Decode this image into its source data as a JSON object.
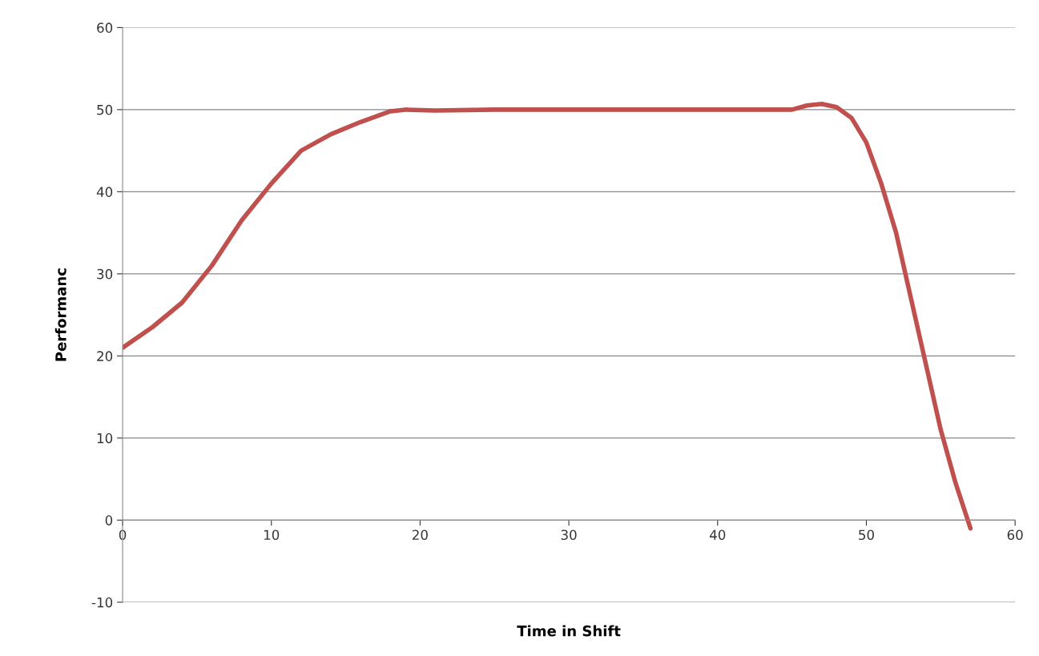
{
  "chart_data": {
    "type": "line",
    "xlabel": "Time in Shift",
    "ylabel": "Performanc",
    "x": [
      0,
      2,
      4,
      6,
      8,
      10,
      12,
      14,
      16,
      18,
      19,
      21,
      25,
      30,
      35,
      40,
      45,
      46,
      47,
      48,
      49,
      50,
      51,
      52,
      53,
      54,
      55,
      56,
      57
    ],
    "series": [
      {
        "color": "#c0504d",
        "values": [
          21,
          23.5,
          26.5,
          31,
          36.5,
          41,
          45,
          47,
          48.5,
          49.8,
          50,
          49.9,
          50,
          50,
          50,
          50,
          50,
          50.5,
          50.7,
          50.3,
          49,
          46,
          41,
          35,
          27,
          19,
          11,
          4.5,
          -1
        ]
      }
    ],
    "xlim": [
      0,
      60
    ],
    "xticks": [
      0,
      10,
      20,
      30,
      40,
      50,
      60
    ],
    "ylim": [
      -10,
      60
    ],
    "yticks": [
      -10,
      0,
      10,
      20,
      30,
      40,
      50,
      60
    ],
    "grid": "y",
    "legend": false,
    "marker": "none",
    "line_style": "solid"
  }
}
